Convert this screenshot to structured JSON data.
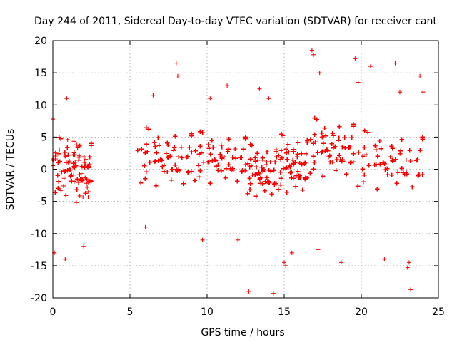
{
  "chart_data": {
    "type": "scatter",
    "title": "Day 244 of 2011, Sidereal Day-to-day VTEC variation (SDTVAR) for receiver cant",
    "xlabel": "GPS time / hours",
    "ylabel": "SDTVAR / TECUs",
    "xlim": [
      0,
      25
    ],
    "ylim": [
      -20,
      20
    ],
    "xticks": [
      0,
      5,
      10,
      15,
      20,
      25
    ],
    "yticks": [
      -20,
      -15,
      -10,
      -5,
      0,
      5,
      10,
      15,
      20
    ],
    "xtick_labels": [
      "0",
      "5",
      "10",
      "15",
      "20",
      "25"
    ],
    "ytick_labels": [
      "-20",
      "-15",
      "-10",
      "-5",
      "0",
      "5",
      "10",
      "15",
      "20"
    ],
    "grid": true,
    "marker": "+",
    "color": "#ff0000",
    "series": [
      {
        "name": "SDTVAR",
        "segments": [
          {
            "x_start": 0.0,
            "x_end": 2.5,
            "center": -0.5,
            "spread": 4.5
          },
          {
            "x_start": 5.5,
            "x_end": 9.0,
            "center": 1.0,
            "spread": 4.5
          },
          {
            "x_start": 9.0,
            "x_end": 12.5,
            "center": 1.0,
            "spread": 4.0
          },
          {
            "x_start": 12.5,
            "x_end": 14.5,
            "center": -1.0,
            "spread": 4.0
          },
          {
            "x_start": 14.5,
            "x_end": 16.5,
            "center": 0.0,
            "spread": 4.5
          },
          {
            "x_start": 16.5,
            "x_end": 19.5,
            "center": 2.5,
            "spread": 4.5
          },
          {
            "x_start": 19.5,
            "x_end": 24.0,
            "center": 0.5,
            "spread": 4.5
          }
        ],
        "points": [
          {
            "x": 0.0,
            "y": 7.8
          },
          {
            "x": 0.9,
            "y": 11.0
          },
          {
            "x": 0.8,
            "y": -14.0
          },
          {
            "x": 0.1,
            "y": -13.0
          },
          {
            "x": 2.0,
            "y": -12.0
          },
          {
            "x": 8.0,
            "y": 16.5
          },
          {
            "x": 8.1,
            "y": 14.5
          },
          {
            "x": 11.3,
            "y": 13.0
          },
          {
            "x": 12.7,
            "y": -19.0
          },
          {
            "x": 14.3,
            "y": -19.3
          },
          {
            "x": 15.0,
            "y": -14.5
          },
          {
            "x": 15.1,
            "y": -15.0
          },
          {
            "x": 16.8,
            "y": 18.5
          },
          {
            "x": 16.9,
            "y": 17.8
          },
          {
            "x": 19.6,
            "y": 17.2
          },
          {
            "x": 20.6,
            "y": 16.0
          },
          {
            "x": 22.2,
            "y": 16.5
          },
          {
            "x": 23.2,
            "y": -18.7
          },
          {
            "x": 23.0,
            "y": -15.3
          },
          {
            "x": 23.1,
            "y": -14.5
          },
          {
            "x": 23.8,
            "y": 14.5
          },
          {
            "x": 21.5,
            "y": -14.0
          },
          {
            "x": 18.7,
            "y": -14.5
          },
          {
            "x": 17.2,
            "y": -12.5
          },
          {
            "x": 14.0,
            "y": 11.0
          },
          {
            "x": 19.8,
            "y": 13.5
          },
          {
            "x": 17.3,
            "y": 15.0
          },
          {
            "x": 13.4,
            "y": 12.5
          },
          {
            "x": 6.5,
            "y": 11.5
          },
          {
            "x": 9.7,
            "y": -11.0
          },
          {
            "x": 12.0,
            "y": -11.0
          },
          {
            "x": 6.0,
            "y": -9.0
          },
          {
            "x": 10.2,
            "y": 11.0
          },
          {
            "x": 22.5,
            "y": 12.0
          },
          {
            "x": 24.0,
            "y": 12.0
          },
          {
            "x": 15.5,
            "y": -13.0
          }
        ]
      }
    ]
  }
}
